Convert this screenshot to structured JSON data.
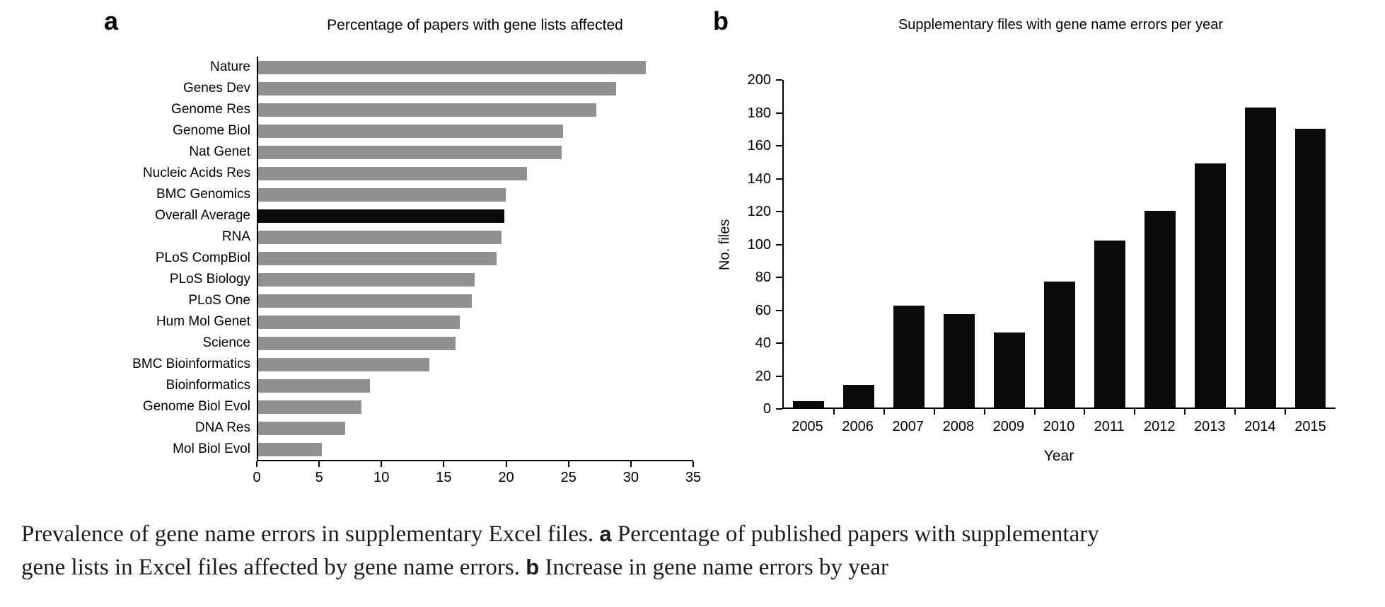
{
  "caption": {
    "text_1": "Prevalence of gene name errors in supplementary Excel files. ",
    "label_a": "a",
    "text_2": " Percentage of published papers with supplementary gene lists in Excel files affected by gene name errors. ",
    "label_b": "b",
    "text_3": " Increase in gene name errors by year"
  },
  "chart_data": [
    {
      "type": "bar",
      "orientation": "horizontal",
      "panel_label": "a",
      "title": "Percentage of papers with gene lists affected",
      "categories": [
        "Nature",
        "Genes Dev",
        "Genome Res",
        "Genome Biol",
        "Nat Genet",
        "Nucleic Acids Res",
        "BMC Genomics",
        "Overall Average",
        "RNA",
        "PLoS CompBiol",
        "PLoS Biology",
        "PLoS One",
        "Hum Mol Genet",
        "Science",
        "BMC Bioinformatics",
        "Bioinformatics",
        "Genome Biol Evol",
        "DNA Res",
        "Mol Biol Evol"
      ],
      "values": [
        31.2,
        28.8,
        27.2,
        24.5,
        24.4,
        21.6,
        19.9,
        19.8,
        19.6,
        19.2,
        17.4,
        17.2,
        16.2,
        15.9,
        13.8,
        9.0,
        8.3,
        7.0,
        5.1
      ],
      "xlim": [
        0,
        35
      ],
      "xticks": [
        0,
        5,
        10,
        15,
        20,
        25,
        30,
        35
      ],
      "bar_color": "#8f8f8f",
      "highlight_category": "Overall Average",
      "highlight_color": "#0a0a0a",
      "grid": false,
      "legend": false
    },
    {
      "type": "bar",
      "orientation": "vertical",
      "panel_label": "b",
      "title": "Supplementary files with gene name errors per year",
      "xlabel": "Year",
      "ylabel": "No. files",
      "categories": [
        "2005",
        "2006",
        "2007",
        "2008",
        "2009",
        "2010",
        "2011",
        "2012",
        "2013",
        "2014",
        "2015"
      ],
      "values": [
        4,
        14,
        62,
        57,
        46,
        77,
        102,
        120,
        149,
        183,
        170
      ],
      "ylim": [
        0,
        200
      ],
      "yticks": [
        0,
        20,
        40,
        60,
        80,
        100,
        120,
        140,
        160,
        180,
        200
      ],
      "bar_color": "#0a0a0a",
      "grid": false,
      "legend": false
    }
  ]
}
